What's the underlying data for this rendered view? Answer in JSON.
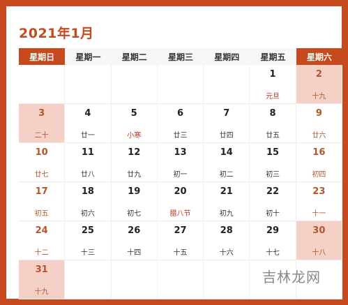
{
  "title": "2021年1月",
  "weekdays": [
    "星期日",
    "星期一",
    "星期二",
    "星期三",
    "星期四",
    "星期五",
    "星期六"
  ],
  "weeks": [
    [
      {
        "day": "",
        "lunar": ""
      },
      {
        "day": "",
        "lunar": ""
      },
      {
        "day": "",
        "lunar": ""
      },
      {
        "day": "",
        "lunar": ""
      },
      {
        "day": "",
        "lunar": ""
      },
      {
        "day": "1",
        "lunar": "元旦"
      },
      {
        "day": "2",
        "lunar": "十九"
      }
    ],
    [
      {
        "day": "3",
        "lunar": "二十"
      },
      {
        "day": "4",
        "lunar": "廿一"
      },
      {
        "day": "5",
        "lunar": "小寒"
      },
      {
        "day": "6",
        "lunar": "廿三"
      },
      {
        "day": "7",
        "lunar": "廿四"
      },
      {
        "day": "8",
        "lunar": "廿五"
      },
      {
        "day": "9",
        "lunar": "廿六"
      }
    ],
    [
      {
        "day": "10",
        "lunar": "廿七"
      },
      {
        "day": "11",
        "lunar": "廿八"
      },
      {
        "day": "12",
        "lunar": "廿九"
      },
      {
        "day": "13",
        "lunar": "初一"
      },
      {
        "day": "14",
        "lunar": "初二"
      },
      {
        "day": "15",
        "lunar": "初三"
      },
      {
        "day": "16",
        "lunar": "初四"
      }
    ],
    [
      {
        "day": "17",
        "lunar": "初五"
      },
      {
        "day": "18",
        "lunar": "初六"
      },
      {
        "day": "19",
        "lunar": "初七"
      },
      {
        "day": "20",
        "lunar": "腊八节"
      },
      {
        "day": "21",
        "lunar": "初九"
      },
      {
        "day": "22",
        "lunar": "初十"
      },
      {
        "day": "23",
        "lunar": "十一"
      }
    ],
    [
      {
        "day": "24",
        "lunar": "十二"
      },
      {
        "day": "25",
        "lunar": "十三"
      },
      {
        "day": "26",
        "lunar": "十四"
      },
      {
        "day": "27",
        "lunar": "十五"
      },
      {
        "day": "28",
        "lunar": "十六"
      },
      {
        "day": "29",
        "lunar": "十七"
      },
      {
        "day": "30",
        "lunar": "十八"
      }
    ],
    [
      {
        "day": "31",
        "lunar": "十九"
      },
      {
        "day": "",
        "lunar": ""
      },
      {
        "day": "",
        "lunar": ""
      },
      {
        "day": "",
        "lunar": ""
      },
      {
        "day": "",
        "lunar": ""
      },
      {
        "day": "",
        "lunar": ""
      },
      {
        "day": "",
        "lunar": ""
      }
    ]
  ],
  "highlighted_days": [
    "2",
    "3",
    "30",
    "31"
  ],
  "festival_days": [
    "1",
    "5",
    "20"
  ],
  "watermark": "吉林龙网",
  "colors": {
    "accent": "#c74a1e",
    "highlight": "#f5d0c6",
    "weekend_text": "#b3552a",
    "festival_text": "#c0392b"
  }
}
